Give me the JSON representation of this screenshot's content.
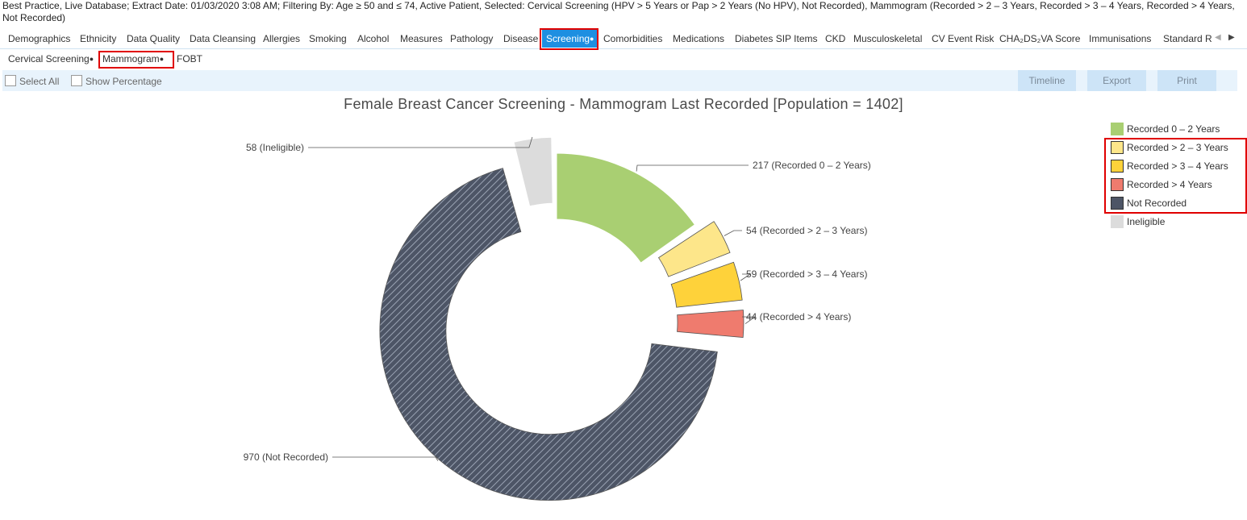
{
  "status_text": "Best Practice, Live Database; Extract Date: 01/03/2020 3:08 AM; Filtering By: Age ≥ 50 and ≤ 74, Active Patient, Selected: Cervical Screening (HPV > 5 Years or Pap > 2 Years (No HPV), Not Recorded), Mammogram (Recorded > 2 – 3 Years, Recorded > 3 – 4 Years, Recorded > 4 Years, Not Recorded)",
  "tabs": [
    "Demographics",
    "Ethnicity",
    "Data Quality",
    "Data Cleansing",
    "Allergies",
    "Smoking",
    "Alcohol",
    "Measures",
    "Pathology",
    "Disease",
    "Screening",
    "Comorbidities",
    "Medications",
    "Diabetes SIP Items",
    "CKD",
    "Musculoskeletal",
    "CV Event Risk",
    "CHA₂DS₂VA Score",
    "Immunisations",
    "Standard R"
  ],
  "active_tab_dot": "●",
  "nav": {
    "prev": "◀",
    "next": "▶"
  },
  "subtabs": {
    "cervical": "Cervical Screening",
    "mammogram": "Mammogram",
    "fobt": "FOBT",
    "dot": "●"
  },
  "toolbar": {
    "select_all": "Select All",
    "show_percentage": "Show Percentage",
    "timeline": "Timeline",
    "export": "Export",
    "print": "Print"
  },
  "colors": {
    "accent": "#1e8fe1",
    "highlight": "#e00000",
    "toolbar_bg": "#e8f3fc",
    "button_bg": "#cde4f7"
  },
  "chart_data": {
    "type": "pie",
    "style": "donut",
    "title": "Female Breast Cancer Screening - Mammogram Last Recorded [Population = 1402]",
    "population": 1402,
    "slices": [
      {
        "label": "Recorded 0 – 2 Years",
        "value": 217,
        "color": "#a9cf72",
        "data_label": "217 (Recorded 0 – 2 Years)"
      },
      {
        "label": "Recorded > 2 – 3 Years",
        "value": 54,
        "color": "#fde68a",
        "data_label": "54 (Recorded > 2 – 3 Years)",
        "selected": true
      },
      {
        "label": "Recorded > 3 – 4 Years",
        "value": 59,
        "color": "#fed23a",
        "data_label": "59 (Recorded > 3 – 4 Years)",
        "selected": true
      },
      {
        "label": "Recorded > 4 Years",
        "value": 44,
        "color": "#ef7b6e",
        "data_label": "44 (Recorded > 4 Years)",
        "selected": true
      },
      {
        "label": "Not Recorded",
        "value": 970,
        "color": "#4d5566",
        "data_label": "970 (Not Recorded)",
        "selected": true,
        "hatched": true
      },
      {
        "label": "Ineligible",
        "value": 58,
        "color": "#dcdcdc",
        "data_label": "58 (Ineligible)"
      }
    ],
    "legend_position": "right"
  }
}
